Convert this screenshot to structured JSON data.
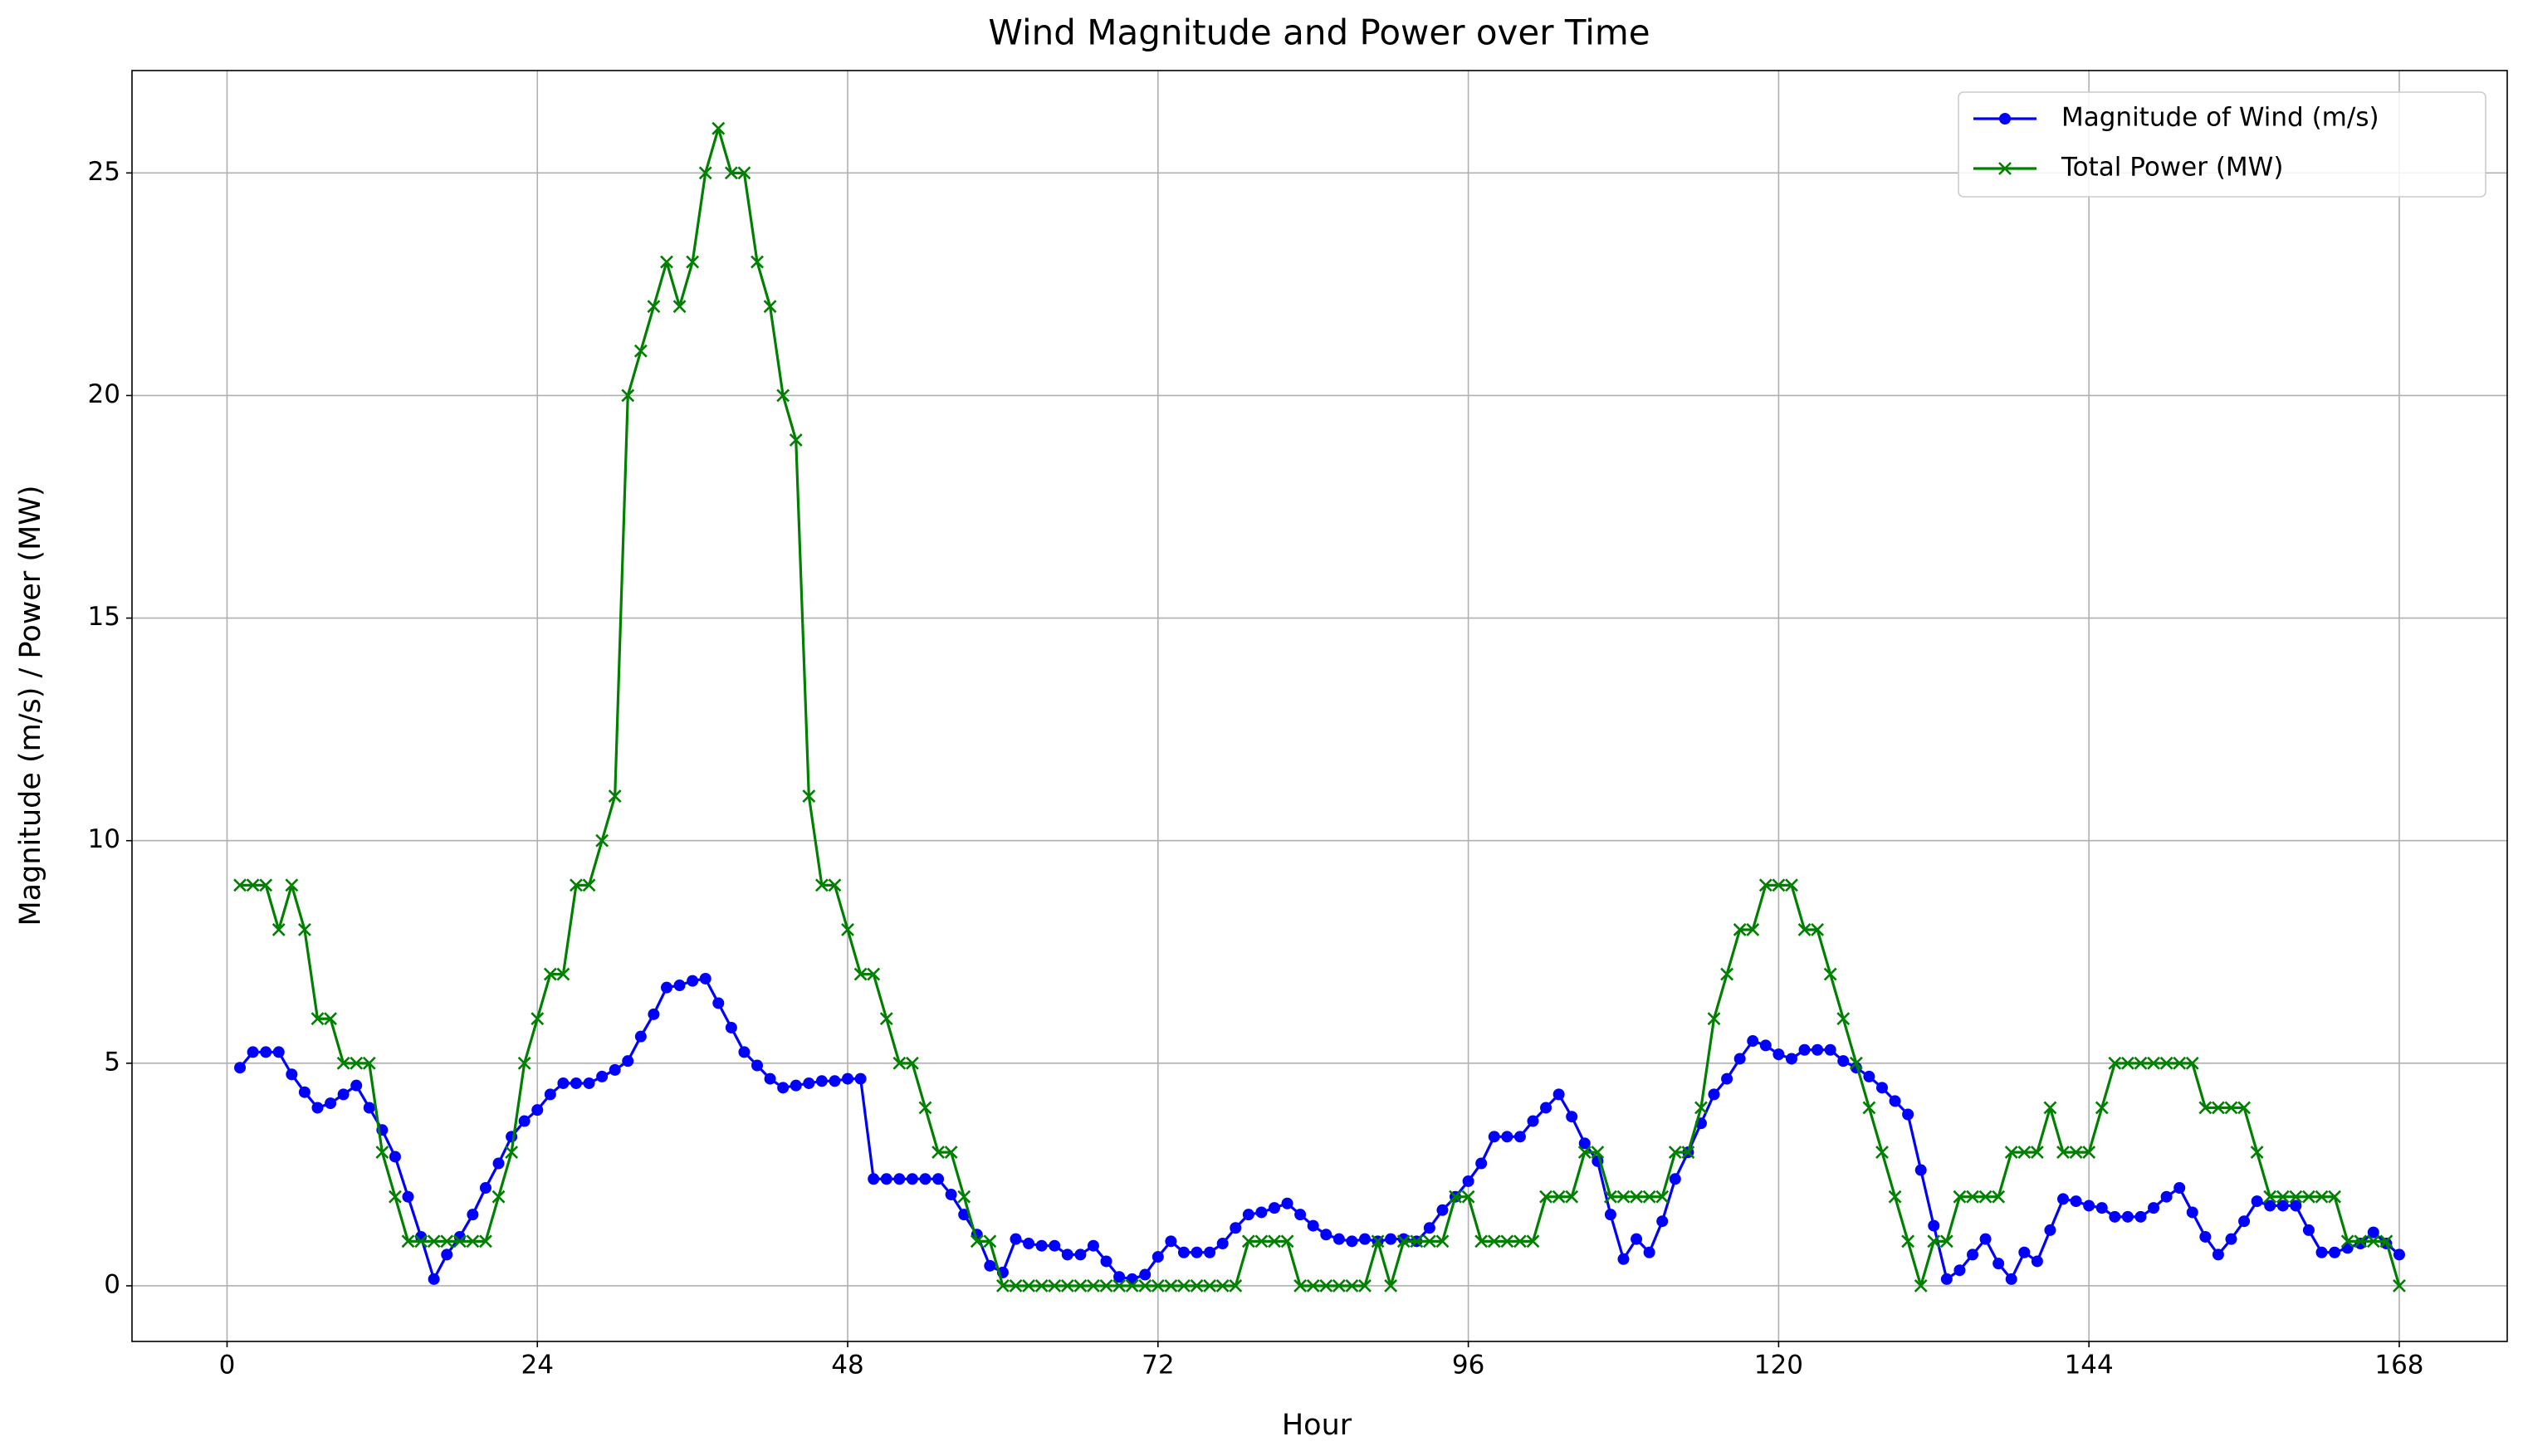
{
  "chart_data": {
    "type": "line",
    "title": "Wind Magnitude and Power over Time",
    "xlabel": "Hour",
    "ylabel": "Magnitude (m/s) / Power (MW)",
    "x": [
      1,
      2,
      3,
      4,
      5,
      6,
      7,
      8,
      9,
      10,
      11,
      12,
      13,
      14,
      15,
      16,
      17,
      18,
      19,
      20,
      21,
      22,
      23,
      24,
      25,
      26,
      27,
      28,
      29,
      30,
      31,
      32,
      33,
      34,
      35,
      36,
      37,
      38,
      39,
      40,
      41,
      42,
      43,
      44,
      45,
      46,
      47,
      48,
      49,
      50,
      51,
      52,
      53,
      54,
      55,
      56,
      57,
      58,
      59,
      60,
      61,
      62,
      63,
      64,
      65,
      66,
      67,
      68,
      69,
      70,
      71,
      72,
      73,
      74,
      75,
      76,
      77,
      78,
      79,
      80,
      81,
      82,
      83,
      84,
      85,
      86,
      87,
      88,
      89,
      90,
      91,
      92,
      93,
      94,
      95,
      96,
      97,
      98,
      99,
      100,
      101,
      102,
      103,
      104,
      105,
      106,
      107,
      108,
      109,
      110,
      111,
      112,
      113,
      114,
      115,
      116,
      117,
      118,
      119,
      120,
      121,
      122,
      123,
      124,
      125,
      126,
      127,
      128,
      129,
      130,
      131,
      132,
      133,
      134,
      135,
      136,
      137,
      138,
      139,
      140,
      141,
      142,
      143,
      144,
      145,
      146,
      147,
      148,
      149,
      150,
      151,
      152,
      153,
      154,
      155,
      156,
      157,
      158,
      159,
      160,
      161,
      162,
      163,
      164,
      165,
      166,
      167,
      168
    ],
    "series": [
      {
        "name": "Magnitude of Wind (m/s)",
        "color": "#0000ff",
        "marker": "o",
        "values": [
          4.9,
          5.25,
          5.25,
          5.25,
          4.75,
          4.35,
          4.0,
          4.1,
          4.3,
          4.5,
          4.0,
          3.5,
          2.9,
          2.0,
          1.1,
          0.15,
          0.7,
          1.1,
          1.6,
          2.2,
          2.75,
          3.35,
          3.7,
          3.95,
          4.3,
          4.55,
          4.55,
          4.55,
          4.7,
          4.85,
          5.05,
          5.6,
          6.1,
          6.7,
          6.75,
          6.85,
          6.9,
          6.35,
          5.8,
          5.25,
          4.95,
          4.65,
          4.45,
          4.5,
          4.55,
          4.6,
          4.6,
          4.65,
          4.65,
          2.4,
          2.4,
          2.4,
          2.4,
          2.4,
          2.4,
          2.05,
          1.6,
          1.15,
          0.45,
          0.3,
          1.05,
          0.95,
          0.9,
          0.9,
          0.7,
          0.7,
          0.9,
          0.55,
          0.2,
          0.15,
          0.25,
          0.65,
          1.0,
          0.75,
          0.75,
          0.75,
          0.95,
          1.3,
          1.6,
          1.65,
          1.75,
          1.85,
          1.6,
          1.35,
          1.15,
          1.05,
          1.0,
          1.05,
          1.0,
          1.05,
          1.05,
          1.0,
          1.3,
          1.7,
          2.0,
          2.35,
          2.75,
          3.35,
          3.35,
          3.35,
          3.7,
          4.0,
          4.3,
          3.8,
          3.2,
          2.8,
          1.6,
          0.6,
          1.05,
          0.75,
          1.45,
          2.4,
          3.0,
          3.65,
          4.3,
          4.65,
          5.1,
          5.5,
          5.4,
          5.2,
          5.1,
          5.3,
          5.3,
          5.3,
          5.05,
          4.9,
          4.7,
          4.45,
          4.15,
          3.85,
          2.6,
          1.35,
          0.15,
          0.35,
          0.7,
          1.05,
          0.5,
          0.15,
          0.75,
          0.55,
          1.25,
          1.95,
          1.9,
          1.8,
          1.75,
          1.55,
          1.55,
          1.55,
          1.75,
          2.0,
          2.2,
          1.65,
          1.1,
          0.7,
          1.05,
          1.45,
          1.9,
          1.8,
          1.8,
          1.8,
          1.25,
          0.75,
          0.75,
          0.85,
          0.95,
          1.2,
          0.95,
          0.7
        ]
      },
      {
        "name": "Total Power (MW)",
        "color": "#008000",
        "marker": "x",
        "values": [
          9,
          9,
          9,
          8,
          9,
          8,
          6,
          6,
          5,
          5,
          5,
          3,
          2,
          1,
          1,
          1,
          1,
          1,
          1,
          1,
          2,
          3,
          5,
          6,
          7,
          7,
          9,
          9,
          10,
          11,
          20,
          21,
          22,
          23,
          22,
          23,
          25,
          26,
          25,
          25,
          23,
          22,
          20,
          19,
          11,
          9,
          9,
          8,
          7,
          7,
          6,
          5,
          5,
          4,
          3,
          3,
          2,
          1,
          1,
          0,
          0,
          0,
          0,
          0,
          0,
          0,
          0,
          0,
          0,
          0,
          0,
          0,
          0,
          0,
          0,
          0,
          0,
          0,
          1,
          1,
          1,
          1,
          0,
          0,
          0,
          0,
          0,
          0,
          1,
          0,
          1,
          1,
          1,
          1,
          2,
          2,
          1,
          1,
          1,
          1,
          1,
          2,
          2,
          2,
          3,
          3,
          2,
          2,
          2,
          2,
          2,
          3,
          3,
          4,
          6,
          7,
          8,
          8,
          9,
          9,
          9,
          8,
          8,
          7,
          6,
          5,
          4,
          3,
          2,
          1,
          0,
          1,
          1,
          2,
          2,
          2,
          2,
          3,
          3,
          3,
          4,
          3,
          3,
          3,
          4,
          5,
          5,
          5,
          5,
          5,
          5,
          5,
          4,
          4,
          4,
          4,
          3,
          2,
          2,
          2,
          2,
          2,
          2,
          1,
          1,
          1,
          1,
          0
        ]
      }
    ],
    "xlim": [
      -7.35,
      176.35
    ],
    "ylim": [
      -1.25,
      27.3
    ],
    "xticks": [
      0,
      24,
      48,
      72,
      96,
      120,
      144,
      168
    ],
    "yticks": [
      0,
      5,
      10,
      15,
      20,
      25
    ],
    "grid": true,
    "legend": "upper right"
  }
}
